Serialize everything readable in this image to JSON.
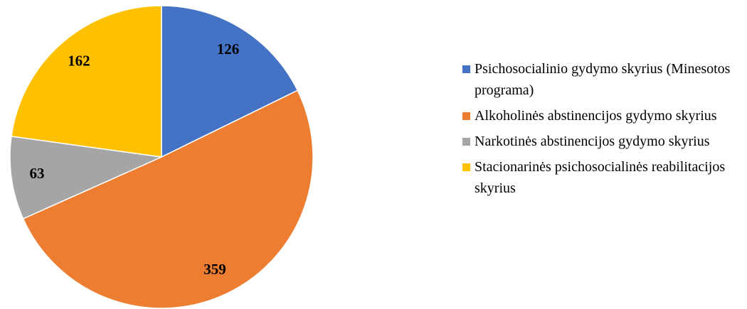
{
  "chart_data": {
    "type": "pie",
    "categories": [
      "Psichosocialinio gydymo skyrius (Minesotos programa)",
      "Alkoholinės abstinencijos gydymo skyrius",
      "Narkotinės abstinencijos gydymo skyrius",
      "Stacionarinės psichosocialinės reabilitacijos skyrius"
    ],
    "values": [
      126,
      359,
      63,
      162
    ],
    "colors": [
      "#4472c4",
      "#ed7d31",
      "#a5a5a5",
      "#ffc000"
    ],
    "legend": "right"
  }
}
